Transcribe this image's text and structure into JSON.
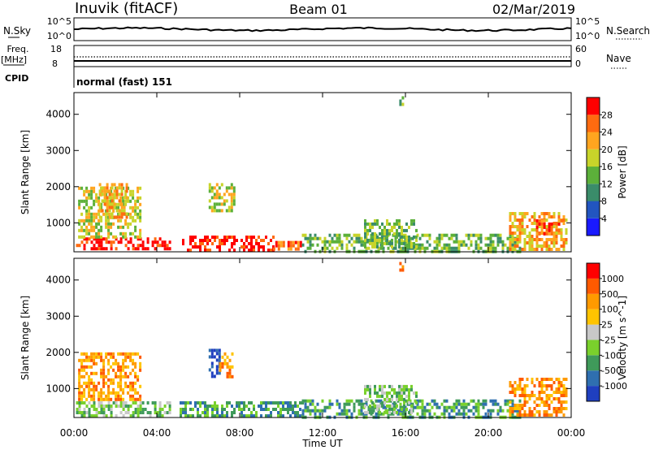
{
  "header": {
    "station": "Inuvik (fitACF)",
    "beam": "Beam 01",
    "date": "02/Mar/2019"
  },
  "top_panels": {
    "nsky": {
      "left_label": "N.Sky",
      "left_ticks": [
        "10^5",
        "10^0"
      ],
      "right_ticks": [
        "10^5",
        "10^0"
      ],
      "right_label": "N.Search"
    },
    "freq": {
      "left_label_1": "Freq.",
      "left_label_2": "[MHz]",
      "left_ticks": [
        "18",
        "8"
      ],
      "right_ticks": [
        "60",
        "0"
      ],
      "right_label": "Nave"
    },
    "cpid": {
      "label": "CPID",
      "text": "normal (fast) 151"
    }
  },
  "x_axis": {
    "label": "Time UT",
    "ticks": [
      "00:00",
      "04:00",
      "08:00",
      "12:00",
      "16:00",
      "20:00",
      "00:00"
    ]
  },
  "chart_data": [
    {
      "type": "heatmap",
      "name": "power",
      "ylabel": "Slant Range [km]",
      "yticks": [
        1000,
        2000,
        3000,
        4000
      ],
      "ylim": [
        200,
        4600
      ],
      "xlim": [
        0,
        24
      ],
      "colorbar": {
        "label": "Power [dB]",
        "tick_labels": [
          "4",
          "8",
          "12",
          "16",
          "20",
          "24",
          "28"
        ],
        "colors": [
          "#1a1aff",
          "#2255c0",
          "#3a8c6a",
          "#5cb03a",
          "#c8d42a",
          "#ffa51f",
          "#ff6b10",
          "#ff0000"
        ]
      },
      "regions": [
        {
          "t0": 0.1,
          "t1": 4.6,
          "r0": 250,
          "r1": 600,
          "level": 7
        },
        {
          "t0": 5.1,
          "t1": 9.6,
          "r0": 250,
          "r1": 650,
          "level": 7
        },
        {
          "t0": 9.6,
          "t1": 11.0,
          "r0": 250,
          "r1": 500,
          "level": 6
        },
        {
          "t0": 0.2,
          "t1": 3.2,
          "r0": 600,
          "r1": 2000,
          "level": 4
        },
        {
          "t0": 1.2,
          "t1": 2.6,
          "r0": 1200,
          "r1": 2100,
          "level": 5
        },
        {
          "t0": 6.5,
          "t1": 7.7,
          "r0": 1300,
          "r1": 2100,
          "level": 4
        },
        {
          "t0": 11.0,
          "t1": 21.5,
          "r0": 250,
          "r1": 700,
          "level": 3
        },
        {
          "t0": 14.0,
          "t1": 16.5,
          "r0": 350,
          "r1": 1100,
          "level": 3
        },
        {
          "t0": 21.0,
          "t1": 23.8,
          "r0": 300,
          "r1": 1300,
          "level": 5
        },
        {
          "t0": 22.3,
          "t1": 23.5,
          "r0": 700,
          "r1": 1100,
          "level": 6
        },
        {
          "t0": 15.7,
          "t1": 15.9,
          "r0": 4300,
          "r1": 4500,
          "level": 3
        }
      ]
    },
    {
      "type": "heatmap",
      "name": "velocity",
      "ylabel": "Slant Range [km]",
      "yticks": [
        1000,
        2000,
        3000,
        4000
      ],
      "ylim": [
        200,
        4600
      ],
      "xlim": [
        0,
        24
      ],
      "colorbar": {
        "label": "Velocity [m s^-1]",
        "tick_labels": [
          "1000",
          "500",
          "100",
          "25",
          "-25",
          "-100",
          "-500",
          "-1000"
        ],
        "colors": [
          "#1f3fbf",
          "#2f6fb0",
          "#3f9a5a",
          "#7ad12c",
          "#c8c8c8",
          "#ffc400",
          "#ff9a00",
          "#ff5a00",
          "#ff0000"
        ]
      },
      "regions": [
        {
          "t0": 0.1,
          "t1": 4.6,
          "r0": 250,
          "r1": 650,
          "level": 3
        },
        {
          "t0": 5.1,
          "t1": 11.0,
          "r0": 250,
          "r1": 650,
          "level": 2
        },
        {
          "t0": 0.2,
          "t1": 3.2,
          "r0": 700,
          "r1": 2000,
          "level": 6
        },
        {
          "t0": 6.5,
          "t1": 7.0,
          "r0": 1300,
          "r1": 2100,
          "level": 0
        },
        {
          "t0": 7.0,
          "t1": 7.7,
          "r0": 1300,
          "r1": 2000,
          "level": 6
        },
        {
          "t0": 11.0,
          "t1": 21.5,
          "r0": 250,
          "r1": 700,
          "level": 2
        },
        {
          "t0": 14.0,
          "t1": 16.5,
          "r0": 350,
          "r1": 1100,
          "level": 3
        },
        {
          "t0": 21.0,
          "t1": 23.8,
          "r0": 300,
          "r1": 1300,
          "level": 6
        },
        {
          "t0": 15.7,
          "t1": 15.9,
          "r0": 4300,
          "r1": 4500,
          "level": 6
        }
      ]
    }
  ]
}
